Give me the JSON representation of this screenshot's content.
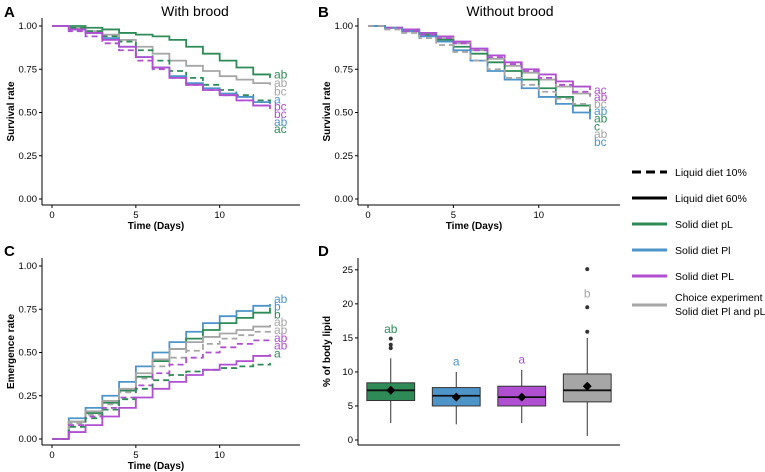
{
  "colors": {
    "green": "#2e8b57",
    "blue": "#4d94c8",
    "purple": "#b04fd1",
    "gray": "#a6a6a6",
    "black": "#000000"
  },
  "legend": {
    "items": [
      {
        "label": "Liquid diet 10%",
        "style": "dashed",
        "color": "black"
      },
      {
        "label": "Liquid diet 60%",
        "style": "solid",
        "color": "black"
      },
      {
        "label": "Solid diet pL",
        "style": "solid",
        "color": "green"
      },
      {
        "label": "Solid diet Pl",
        "style": "solid",
        "color": "blue"
      },
      {
        "label": "Solid diet PL",
        "style": "solid",
        "color": "purple"
      },
      {
        "label": "Choice experiment",
        "label2": "Solid diet Pl and pL",
        "style": "solid",
        "color": "gray"
      }
    ]
  },
  "chart_data": [
    {
      "panel": "A",
      "title": "With brood",
      "type": "line",
      "step": true,
      "xlabel": "Time (Days)",
      "ylabel": "Survival rate",
      "xlim": [
        0,
        13
      ],
      "ylim": [
        0,
        1
      ],
      "xticks": [
        "0",
        "5",
        "10"
      ],
      "yticks": [
        "0.00",
        "0.25",
        "0.50",
        "0.75",
        "1.00"
      ],
      "series": [
        {
          "name": "Solid diet pL, liquid 60%",
          "color": "green",
          "dash": false,
          "x": [
            0,
            1,
            2,
            3,
            4,
            5,
            6,
            7,
            8,
            9,
            10,
            11,
            12,
            13
          ],
          "y": [
            1.0,
            1.0,
            0.99,
            0.98,
            0.96,
            0.95,
            0.94,
            0.92,
            0.88,
            0.84,
            0.8,
            0.76,
            0.72,
            0.7
          ]
        },
        {
          "name": "Choice, liquid 60%",
          "color": "gray",
          "dash": false,
          "x": [
            0,
            1,
            2,
            3,
            4,
            5,
            6,
            7,
            8,
            9,
            10,
            11,
            12,
            13
          ],
          "y": [
            1.0,
            0.99,
            0.97,
            0.95,
            0.92,
            0.88,
            0.84,
            0.8,
            0.77,
            0.74,
            0.71,
            0.69,
            0.67,
            0.66
          ]
        },
        {
          "name": "Solid diet pL, liquid 10%",
          "color": "green",
          "dash": true,
          "x": [
            0,
            1,
            2,
            3,
            4,
            5,
            6,
            7,
            8,
            9,
            10,
            11,
            12,
            13
          ],
          "y": [
            1.0,
            0.99,
            0.97,
            0.94,
            0.91,
            0.86,
            0.8,
            0.74,
            0.7,
            0.66,
            0.63,
            0.6,
            0.57,
            0.55
          ]
        },
        {
          "name": "Solid diet Pl, liquid 60%",
          "color": "blue",
          "dash": false,
          "x": [
            0,
            1,
            2,
            3,
            4,
            5,
            6,
            7,
            8,
            9,
            10,
            11,
            12,
            13
          ],
          "y": [
            1.0,
            0.98,
            0.96,
            0.93,
            0.88,
            0.82,
            0.76,
            0.71,
            0.67,
            0.64,
            0.61,
            0.59,
            0.56,
            0.55
          ]
        },
        {
          "name": "Solid diet PL, liquid 60%",
          "color": "purple",
          "dash": false,
          "x": [
            0,
            1,
            2,
            3,
            4,
            5,
            6,
            7,
            8,
            9,
            10,
            11,
            12,
            13
          ],
          "y": [
            1.0,
            0.98,
            0.96,
            0.92,
            0.88,
            0.82,
            0.76,
            0.7,
            0.66,
            0.63,
            0.6,
            0.57,
            0.54,
            0.52
          ]
        },
        {
          "name": "Solid diet PL, liquid 10%",
          "color": "purple",
          "dash": true,
          "x": [
            0,
            1,
            2,
            3,
            4,
            5,
            6,
            7,
            8,
            9,
            10,
            11,
            12,
            13
          ],
          "y": [
            1.0,
            0.97,
            0.94,
            0.9,
            0.86,
            0.8,
            0.75,
            0.7,
            0.66,
            0.63,
            0.6,
            0.57,
            0.54,
            0.53
          ]
        }
      ],
      "annotations": [
        {
          "text": "ab",
          "color": "green",
          "y": 0.72
        },
        {
          "text": "ab",
          "color": "gray",
          "y": 0.67
        },
        {
          "text": "bc",
          "color": "gray",
          "y": 0.62
        },
        {
          "text": "a",
          "color": "blue",
          "y": 0.575
        },
        {
          "text": "bc",
          "color": "purple",
          "y": 0.535
        },
        {
          "text": "bc",
          "color": "purple",
          "y": 0.49
        },
        {
          "text": "ab",
          "color": "blue",
          "y": 0.445
        },
        {
          "text": "ac",
          "color": "green",
          "y": 0.405
        }
      ]
    },
    {
      "panel": "B",
      "title": "Without brood",
      "type": "line",
      "step": true,
      "xlabel": "Time (Days)",
      "ylabel": "Survival rate",
      "xlim": [
        0,
        13
      ],
      "ylim": [
        0,
        1
      ],
      "xticks": [
        "0",
        "5",
        "10"
      ],
      "yticks": [
        "0.00",
        "0.25",
        "0.50",
        "0.75",
        "1.00"
      ],
      "series": [
        {
          "name": "Solid diet PL, liquid 60%",
          "color": "purple",
          "dash": false,
          "x": [
            0,
            1,
            2,
            3,
            4,
            5,
            6,
            7,
            8,
            9,
            10,
            11,
            12,
            13
          ],
          "y": [
            1.0,
            0.99,
            0.98,
            0.96,
            0.94,
            0.91,
            0.87,
            0.83,
            0.79,
            0.75,
            0.72,
            0.68,
            0.65,
            0.63
          ]
        },
        {
          "name": "Choice, liquid 60%",
          "color": "gray",
          "dash": false,
          "x": [
            0,
            1,
            2,
            3,
            4,
            5,
            6,
            7,
            8,
            9,
            10,
            11,
            12,
            13
          ],
          "y": [
            1.0,
            0.99,
            0.97,
            0.95,
            0.93,
            0.9,
            0.86,
            0.81,
            0.77,
            0.73,
            0.69,
            0.65,
            0.61,
            0.59
          ]
        },
        {
          "name": "Solid diet pL, liquid 60%",
          "color": "green",
          "dash": false,
          "x": [
            0,
            1,
            2,
            3,
            4,
            5,
            6,
            7,
            8,
            9,
            10,
            11,
            12,
            13
          ],
          "y": [
            1.0,
            0.99,
            0.97,
            0.95,
            0.92,
            0.88,
            0.84,
            0.79,
            0.74,
            0.69,
            0.64,
            0.59,
            0.54,
            0.5
          ]
        },
        {
          "name": "Solid diet Pl, liquid 60%",
          "color": "blue",
          "dash": false,
          "x": [
            0,
            1,
            2,
            3,
            4,
            5,
            6,
            7,
            8,
            9,
            10,
            11,
            12,
            13
          ],
          "y": [
            1.0,
            0.99,
            0.97,
            0.94,
            0.91,
            0.86,
            0.8,
            0.74,
            0.69,
            0.64,
            0.59,
            0.55,
            0.5,
            0.46
          ]
        },
        {
          "name": "Solid diet PL, liquid 10%",
          "color": "purple",
          "dash": true,
          "x": [
            0,
            1,
            2,
            3,
            4,
            5,
            6,
            7,
            8,
            9,
            10,
            11,
            12,
            13
          ],
          "y": [
            1.0,
            0.99,
            0.97,
            0.95,
            0.93,
            0.9,
            0.86,
            0.82,
            0.78,
            0.74,
            0.7,
            0.66,
            0.62,
            0.6
          ]
        },
        {
          "name": "Choice, liquid 10%",
          "color": "gray",
          "dash": true,
          "x": [
            0,
            1,
            2,
            3,
            4,
            5,
            6,
            7,
            8,
            9,
            10,
            11,
            12,
            13
          ],
          "y": [
            1.0,
            0.98,
            0.96,
            0.93,
            0.89,
            0.85,
            0.8,
            0.75,
            0.7,
            0.66,
            0.62,
            0.58,
            0.55,
            0.52
          ]
        }
      ],
      "annotations": [
        {
          "text": "ac",
          "color": "purple",
          "y": 0.63
        },
        {
          "text": "ab",
          "color": "purple",
          "y": 0.59
        },
        {
          "text": "bc",
          "color": "gray",
          "y": 0.55
        },
        {
          "text": "ab",
          "color": "blue",
          "y": 0.51
        },
        {
          "text": "ab",
          "color": "green",
          "y": 0.465
        },
        {
          "text": "c",
          "color": "green",
          "y": 0.42
        },
        {
          "text": "ab",
          "color": "gray",
          "y": 0.375
        },
        {
          "text": "bc",
          "color": "blue",
          "y": 0.33
        }
      ]
    },
    {
      "panel": "C",
      "title": "",
      "type": "line",
      "step": true,
      "xlabel": "Time (Days)",
      "ylabel": "Emergence rate",
      "xlim": [
        0,
        13
      ],
      "ylim": [
        0,
        1
      ],
      "xticks": [
        "0",
        "5",
        "10"
      ],
      "yticks": [
        "0.00",
        "0.25",
        "0.50",
        "0.75",
        "1.00"
      ],
      "series": [
        {
          "name": "Solid diet Pl, liquid 60%",
          "color": "blue",
          "dash": false,
          "x": [
            0,
            1,
            2,
            3,
            4,
            5,
            6,
            7,
            8,
            9,
            10,
            11,
            12,
            13
          ],
          "y": [
            0.0,
            0.12,
            0.18,
            0.25,
            0.33,
            0.42,
            0.5,
            0.56,
            0.62,
            0.67,
            0.71,
            0.74,
            0.77,
            0.78
          ]
        },
        {
          "name": "Solid diet pL, liquid 60%",
          "color": "green",
          "dash": false,
          "x": [
            0,
            1,
            2,
            3,
            4,
            5,
            6,
            7,
            8,
            9,
            10,
            11,
            12,
            13
          ],
          "y": [
            0.0,
            0.1,
            0.15,
            0.21,
            0.28,
            0.36,
            0.45,
            0.52,
            0.58,
            0.63,
            0.67,
            0.7,
            0.73,
            0.76
          ]
        },
        {
          "name": "Choice, liquid 60%",
          "color": "gray",
          "dash": false,
          "x": [
            0,
            1,
            2,
            3,
            4,
            5,
            6,
            7,
            8,
            9,
            10,
            11,
            12,
            13
          ],
          "y": [
            0.0,
            0.1,
            0.16,
            0.22,
            0.29,
            0.38,
            0.46,
            0.52,
            0.56,
            0.59,
            0.61,
            0.63,
            0.65,
            0.66
          ]
        },
        {
          "name": "Choice, liquid 10%",
          "color": "gray",
          "dash": true,
          "x": [
            0,
            1,
            2,
            3,
            4,
            5,
            6,
            7,
            8,
            9,
            10,
            11,
            12,
            13
          ],
          "y": [
            0.0,
            0.09,
            0.14,
            0.2,
            0.27,
            0.35,
            0.42,
            0.47,
            0.51,
            0.55,
            0.58,
            0.6,
            0.62,
            0.63
          ]
        },
        {
          "name": "Solid diet PL, liquid 10%",
          "color": "purple",
          "dash": true,
          "x": [
            0,
            1,
            2,
            3,
            4,
            5,
            6,
            7,
            8,
            9,
            10,
            11,
            12,
            13
          ],
          "y": [
            0.0,
            0.08,
            0.13,
            0.18,
            0.24,
            0.31,
            0.38,
            0.43,
            0.47,
            0.5,
            0.53,
            0.55,
            0.57,
            0.59
          ]
        },
        {
          "name": "Solid diet pL, liquid 10%",
          "color": "green",
          "dash": true,
          "x": [
            0,
            1,
            2,
            3,
            4,
            5,
            6,
            7,
            8,
            9,
            10,
            11,
            12,
            13
          ],
          "y": [
            0.0,
            0.07,
            0.12,
            0.17,
            0.23,
            0.29,
            0.34,
            0.37,
            0.39,
            0.4,
            0.41,
            0.42,
            0.43,
            0.44
          ]
        },
        {
          "name": "Solid diet PL, liquid 60%",
          "color": "purple",
          "dash": false,
          "x": [
            0,
            1,
            2,
            3,
            4,
            5,
            6,
            7,
            8,
            9,
            10,
            11,
            12,
            13
          ],
          "y": [
            0.0,
            0.04,
            0.08,
            0.13,
            0.18,
            0.24,
            0.29,
            0.33,
            0.37,
            0.4,
            0.43,
            0.45,
            0.48,
            0.49
          ]
        }
      ],
      "annotations": [
        {
          "text": "ab",
          "color": "blue",
          "y": 0.81
        },
        {
          "text": "b",
          "color": "blue",
          "y": 0.765
        },
        {
          "text": "b",
          "color": "green",
          "y": 0.72
        },
        {
          "text": "ab",
          "color": "gray",
          "y": 0.675
        },
        {
          "text": "ab",
          "color": "gray",
          "y": 0.63
        },
        {
          "text": "ab",
          "color": "purple",
          "y": 0.585
        },
        {
          "text": "ab",
          "color": "purple",
          "y": 0.54
        },
        {
          "text": "a",
          "color": "green",
          "y": 0.495
        }
      ]
    },
    {
      "panel": "D",
      "title": "",
      "type": "box",
      "xlabel": "",
      "ylabel": "% of body lipid",
      "ylim": [
        0,
        26
      ],
      "yticks": [
        "0",
        "5",
        "10",
        "15",
        "20",
        "25"
      ],
      "boxes": [
        {
          "name": "Solid diet pL",
          "color": "green",
          "q1": 5.8,
          "median": 7.3,
          "q3": 8.4,
          "whisker_low": 2.5,
          "whisker_high": 12.0,
          "mean": 7.3,
          "outliers": [
            13.5,
            14.0,
            14.9
          ],
          "letter": "ab",
          "letter_y": 16.3
        },
        {
          "name": "Solid diet Pl",
          "color": "blue",
          "q1": 5.0,
          "median": 6.5,
          "q3": 7.7,
          "whisker_low": 2.3,
          "whisker_high": 10.0,
          "mean": 6.3,
          "outliers": [],
          "letter": "a",
          "letter_y": 11.5
        },
        {
          "name": "Solid diet PL",
          "color": "purple",
          "q1": 5.0,
          "median": 6.3,
          "q3": 7.9,
          "whisker_low": 2.5,
          "whisker_high": 10.3,
          "mean": 6.3,
          "outliers": [],
          "letter": "a",
          "letter_y": 11.8
        },
        {
          "name": "Choice experiment",
          "color": "gray",
          "q1": 5.6,
          "median": 7.3,
          "q3": 9.7,
          "whisker_low": 0.6,
          "whisker_high": 15.0,
          "mean": 7.9,
          "outliers": [
            15.9,
            19.5,
            25.1
          ],
          "letter": "b",
          "letter_y": 21.5
        }
      ]
    }
  ]
}
